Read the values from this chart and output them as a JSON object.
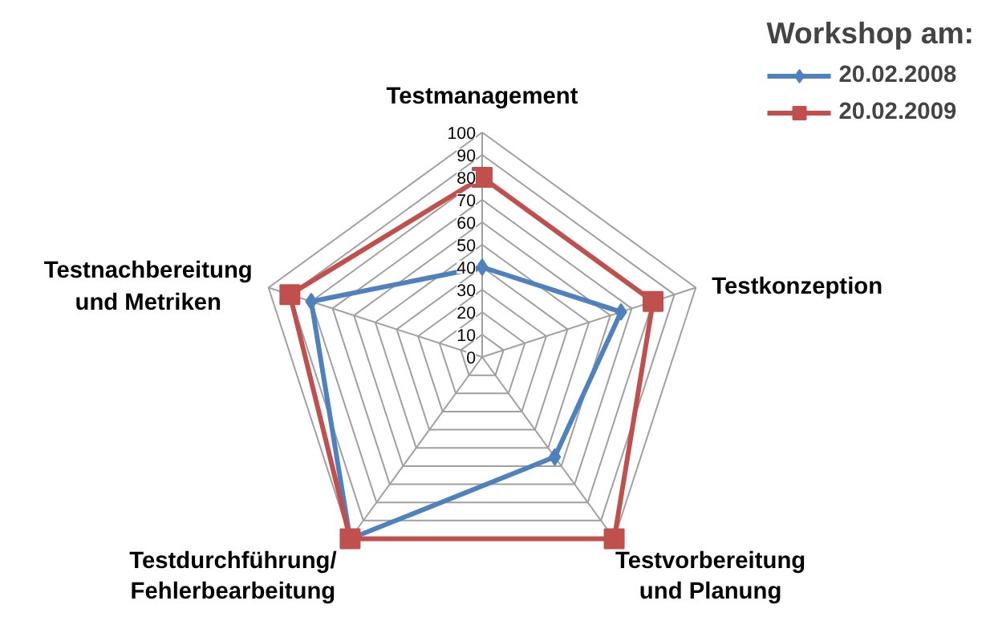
{
  "chart_data": {
    "type": "radar",
    "categories": [
      "Testmanagement",
      "Testkonzeption",
      "Testvorbereitung\nund Planung",
      "Testdurchführung/\nFehlerbearbeitung",
      "Testnachbereitung\nund Metriken"
    ],
    "legend_title": "Workshop am:",
    "series": [
      {
        "name": "20.02.2008",
        "color": "#4f81bd",
        "values": [
          40,
          65,
          55,
          100,
          80
        ],
        "marker": "diamond"
      },
      {
        "name": "20.02.2009",
        "color": "#c0504d",
        "values": [
          80,
          80,
          100,
          100,
          90
        ],
        "marker": "square"
      }
    ],
    "ylim": [
      0,
      100
    ],
    "yticks": [
      0,
      10,
      20,
      30,
      40,
      50,
      60,
      70,
      80,
      90,
      100
    ],
    "grid": true,
    "legend": "top right"
  }
}
